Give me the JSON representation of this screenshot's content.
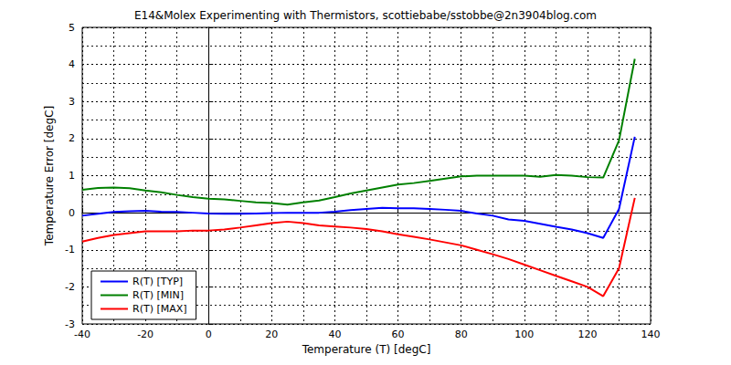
{
  "chart_data": {
    "type": "line",
    "title": "E14&Molex Experimenting with Thermistors, scottiebabe/sstobbe@2n3904blog.com",
    "x_label": "Temperature (T) [degC]",
    "y_label": "Temperature Error [degC]",
    "x": [
      -40,
      -35,
      -30,
      -25,
      -20,
      -15,
      -10,
      -5,
      0,
      5,
      10,
      15,
      20,
      25,
      30,
      35,
      40,
      45,
      50,
      55,
      60,
      65,
      70,
      75,
      80,
      85,
      90,
      95,
      100,
      105,
      110,
      115,
      120,
      125,
      130,
      135
    ],
    "series": [
      {
        "name": "R(T) [TYP]",
        "color": "#0000ff",
        "values": [
          -0.08,
          -0.03,
          0.02,
          0.04,
          0.05,
          0.03,
          0.02,
          0.0,
          -0.02,
          -0.03,
          -0.03,
          -0.02,
          -0.01,
          0.0,
          0.0,
          0.0,
          0.03,
          0.07,
          0.1,
          0.13,
          0.12,
          0.12,
          0.1,
          0.08,
          0.05,
          -0.02,
          -0.08,
          -0.18,
          -0.22,
          -0.3,
          -0.38,
          -0.45,
          -0.55,
          -0.68,
          0.1,
          2.05
        ]
      },
      {
        "name": "R(T) [MIN]",
        "color": "#008000",
        "values": [
          0.62,
          0.67,
          0.68,
          0.66,
          0.6,
          0.55,
          0.48,
          0.42,
          0.38,
          0.36,
          0.32,
          0.28,
          0.26,
          0.22,
          0.28,
          0.33,
          0.42,
          0.52,
          0.6,
          0.68,
          0.76,
          0.8,
          0.86,
          0.92,
          0.98,
          1.0,
          1.0,
          1.0,
          1.0,
          0.97,
          1.02,
          1.0,
          0.96,
          0.95,
          1.95,
          4.15
        ]
      },
      {
        "name": "R(T) [MAX]",
        "color": "#ff0000",
        "values": [
          -0.78,
          -0.68,
          -0.6,
          -0.55,
          -0.5,
          -0.5,
          -0.5,
          -0.48,
          -0.48,
          -0.45,
          -0.4,
          -0.34,
          -0.28,
          -0.24,
          -0.28,
          -0.34,
          -0.37,
          -0.4,
          -0.44,
          -0.5,
          -0.58,
          -0.65,
          -0.72,
          -0.8,
          -0.88,
          -1.0,
          -1.12,
          -1.25,
          -1.4,
          -1.55,
          -1.7,
          -1.85,
          -2.0,
          -2.25,
          -1.5,
          0.4
        ]
      }
    ],
    "xlim": [
      -40,
      140
    ],
    "xticks": [
      -40,
      -20,
      0,
      20,
      40,
      60,
      80,
      100,
      120,
      140
    ],
    "ylim": [
      -3,
      5
    ],
    "yticks": [
      -3,
      -2,
      -1,
      0,
      1,
      2,
      3,
      4,
      5
    ],
    "grid": true,
    "legend": "lower left"
  }
}
